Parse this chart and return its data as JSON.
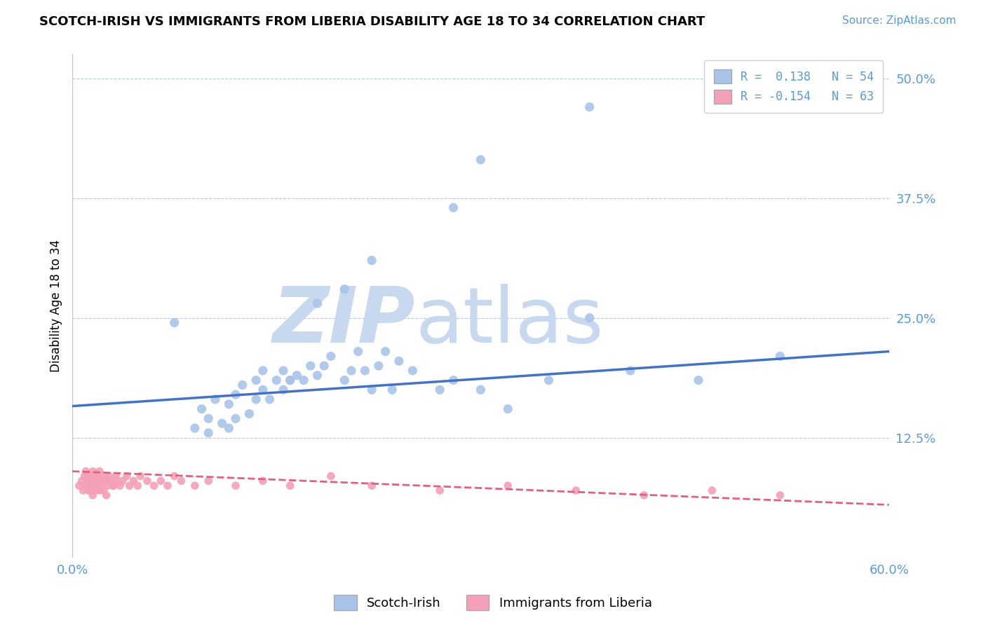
{
  "title": "SCOTCH-IRISH VS IMMIGRANTS FROM LIBERIA DISABILITY AGE 18 TO 34 CORRELATION CHART",
  "source_text": "Source: ZipAtlas.com",
  "ylabel": "Disability Age 18 to 34",
  "xmin": 0.0,
  "xmax": 0.6,
  "ymin": 0.0,
  "ymax": 0.525,
  "yticks": [
    0.0,
    0.125,
    0.25,
    0.375,
    0.5
  ],
  "ytick_labels": [
    "",
    "12.5%",
    "25.0%",
    "37.5%",
    "50.0%"
  ],
  "xtick_labels": [
    "0.0%",
    "60.0%"
  ],
  "legend_entry1": "R =  0.138   N = 54",
  "legend_entry2": "R = -0.154   N = 63",
  "watermark_part1": "ZIP",
  "watermark_part2": "atlas",
  "watermark_color": "#c8d8ee",
  "blue_scatter_x": [
    0.075,
    0.09,
    0.095,
    0.1,
    0.1,
    0.105,
    0.11,
    0.115,
    0.115,
    0.12,
    0.12,
    0.125,
    0.13,
    0.135,
    0.135,
    0.14,
    0.145,
    0.15,
    0.155,
    0.155,
    0.16,
    0.165,
    0.17,
    0.175,
    0.18,
    0.185,
    0.19,
    0.2,
    0.205,
    0.21,
    0.215,
    0.22,
    0.225,
    0.23,
    0.235,
    0.24,
    0.25,
    0.27,
    0.28,
    0.3,
    0.32,
    0.35,
    0.38,
    0.41,
    0.46,
    0.52,
    0.38,
    0.3,
    0.28,
    0.22,
    0.2,
    0.18,
    0.16,
    0.14
  ],
  "blue_scatter_y": [
    0.245,
    0.135,
    0.155,
    0.13,
    0.145,
    0.165,
    0.14,
    0.135,
    0.16,
    0.145,
    0.17,
    0.18,
    0.15,
    0.165,
    0.185,
    0.175,
    0.165,
    0.185,
    0.175,
    0.195,
    0.185,
    0.19,
    0.185,
    0.2,
    0.19,
    0.2,
    0.21,
    0.185,
    0.195,
    0.215,
    0.195,
    0.175,
    0.2,
    0.215,
    0.175,
    0.205,
    0.195,
    0.175,
    0.185,
    0.175,
    0.155,
    0.185,
    0.25,
    0.195,
    0.185,
    0.21,
    0.47,
    0.415,
    0.365,
    0.31,
    0.28,
    0.265,
    0.185,
    0.195
  ],
  "pink_scatter_x": [
    0.005,
    0.007,
    0.008,
    0.009,
    0.01,
    0.01,
    0.011,
    0.012,
    0.012,
    0.013,
    0.013,
    0.014,
    0.015,
    0.015,
    0.016,
    0.016,
    0.017,
    0.018,
    0.018,
    0.019,
    0.02,
    0.02,
    0.021,
    0.022,
    0.023,
    0.024,
    0.025,
    0.026,
    0.027,
    0.028,
    0.03,
    0.032,
    0.033,
    0.035,
    0.037,
    0.04,
    0.042,
    0.045,
    0.048,
    0.05,
    0.055,
    0.06,
    0.065,
    0.07,
    0.075,
    0.08,
    0.09,
    0.1,
    0.12,
    0.14,
    0.16,
    0.19,
    0.22,
    0.27,
    0.32,
    0.37,
    0.42,
    0.47,
    0.52,
    0.015,
    0.02,
    0.025,
    0.03
  ],
  "pink_scatter_y": [
    0.075,
    0.08,
    0.07,
    0.085,
    0.09,
    0.075,
    0.08,
    0.085,
    0.07,
    0.08,
    0.075,
    0.07,
    0.085,
    0.09,
    0.075,
    0.08,
    0.07,
    0.085,
    0.075,
    0.08,
    0.085,
    0.09,
    0.075,
    0.08,
    0.07,
    0.085,
    0.08,
    0.075,
    0.085,
    0.08,
    0.075,
    0.085,
    0.08,
    0.075,
    0.08,
    0.085,
    0.075,
    0.08,
    0.075,
    0.085,
    0.08,
    0.075,
    0.08,
    0.075,
    0.085,
    0.08,
    0.075,
    0.08,
    0.075,
    0.08,
    0.075,
    0.085,
    0.075,
    0.07,
    0.075,
    0.07,
    0.065,
    0.07,
    0.065,
    0.065,
    0.07,
    0.065,
    0.075
  ],
  "blue_line_x": [
    0.0,
    0.6
  ],
  "blue_line_y_start": 0.158,
  "blue_line_y_end": 0.215,
  "pink_line_x": [
    0.0,
    0.6
  ],
  "pink_line_y_start": 0.09,
  "pink_line_y_end": 0.055,
  "blue_color": "#4472c4",
  "pink_line_color": "#e06080",
  "blue_scatter_color": "#a9c4e8",
  "pink_scatter_color": "#f4a0b8",
  "background_color": "#ffffff",
  "grid_color": "#b8c8d8",
  "tick_color": "#5b9bd5",
  "legend_label1": "Scotch-Irish",
  "legend_label2": "Immigrants from Liberia"
}
